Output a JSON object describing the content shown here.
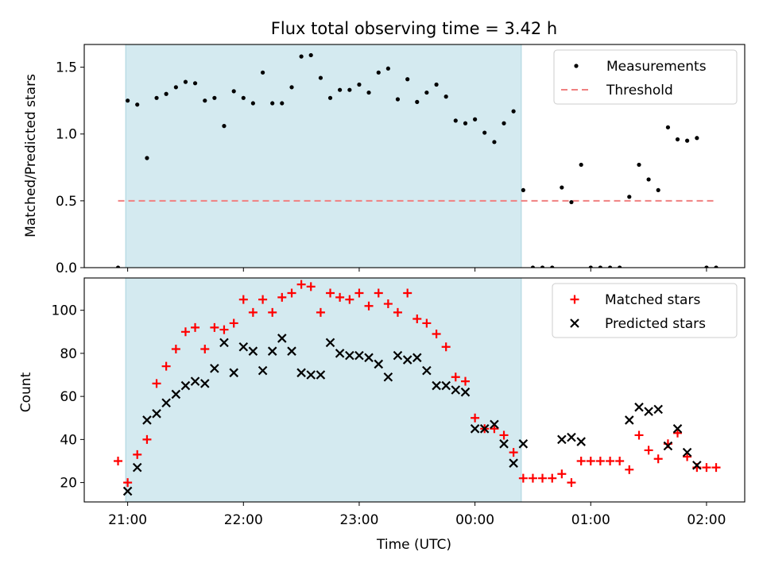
{
  "chart_data": [
    {
      "type": "scatter",
      "title": "Flux total observing time = 3.42 h",
      "xlabel": "",
      "ylabel": "Matched/Predicted stars",
      "xlim": [
        -0.375,
        5.33
      ],
      "ylim": [
        0,
        1.67
      ],
      "yticks": [
        0,
        0.5,
        1.0,
        1.5
      ],
      "ytick_labels": [
        "0.0",
        "0.5",
        "1.0",
        "1.5"
      ],
      "shaded_interval": [
        -0.017,
        3.4
      ],
      "shade_color": "#d4eaf0",
      "threshold": {
        "value": 0.5,
        "x_range": [
          -0.083,
          5.08
        ],
        "color": "#f08080"
      },
      "legend": {
        "position": "top-right",
        "entries": [
          "Measurements",
          "Threshold"
        ]
      },
      "series": [
        {
          "name": "Measurements",
          "color": "#000000",
          "marker": "dot",
          "x": [
            -0.083,
            0.0,
            0.083,
            0.167,
            0.25,
            0.333,
            0.417,
            0.5,
            0.583,
            0.667,
            0.75,
            0.833,
            0.917,
            1.0,
            1.083,
            1.167,
            1.25,
            1.333,
            1.417,
            1.5,
            1.583,
            1.667,
            1.75,
            1.833,
            1.917,
            2.0,
            2.083,
            2.167,
            2.25,
            2.333,
            2.417,
            2.5,
            2.583,
            2.667,
            2.75,
            2.833,
            2.917,
            3.0,
            3.083,
            3.167,
            3.25,
            3.333,
            3.417,
            3.5,
            3.583,
            3.667,
            3.75,
            3.833,
            3.917,
            4.0,
            4.083,
            4.167,
            4.25,
            4.333,
            4.417,
            4.5,
            4.583,
            4.667,
            4.75,
            4.833,
            4.917,
            5.0,
            5.083
          ],
          "y": [
            0.0,
            1.25,
            1.22,
            0.82,
            1.27,
            1.3,
            1.35,
            1.39,
            1.38,
            1.25,
            1.27,
            1.06,
            1.32,
            1.27,
            1.23,
            1.46,
            1.23,
            1.23,
            1.35,
            1.58,
            1.59,
            1.42,
            1.27,
            1.33,
            1.33,
            1.37,
            1.31,
            1.46,
            1.49,
            1.26,
            1.41,
            1.24,
            1.31,
            1.37,
            1.28,
            1.1,
            1.08,
            1.11,
            1.01,
            0.94,
            1.08,
            1.17,
            0.58,
            0.0,
            0.0,
            0.0,
            0.6,
            0.49,
            0.77,
            0.0,
            0.0,
            0.0,
            0.0,
            0.53,
            0.77,
            0.66,
            0.58,
            1.05,
            0.96,
            0.95,
            0.97,
            0.0,
            0.0
          ]
        }
      ]
    },
    {
      "type": "scatter",
      "title": "",
      "xlabel": "Time (UTC)",
      "ylabel": "Count",
      "xlim": [
        -0.375,
        5.33
      ],
      "ylim": [
        11,
        115
      ],
      "yticks": [
        20,
        40,
        60,
        80,
        100
      ],
      "ytick_labels": [
        "20",
        "40",
        "60",
        "80",
        "100"
      ],
      "xticks": [
        0,
        1,
        2,
        3,
        4,
        5
      ],
      "xtick_labels": [
        "21:00",
        "22:00",
        "23:00",
        "00:00",
        "01:00",
        "02:00"
      ],
      "shaded_interval": [
        -0.017,
        3.4
      ],
      "shade_color": "#d4eaf0",
      "legend": {
        "position": "top-right",
        "entries": [
          "Matched stars",
          "Predicted stars"
        ]
      },
      "series": [
        {
          "name": "Matched stars",
          "color": "#ff0000",
          "marker": "plus",
          "x": [
            -0.083,
            0.0,
            0.083,
            0.167,
            0.25,
            0.333,
            0.417,
            0.5,
            0.583,
            0.667,
            0.75,
            0.833,
            0.917,
            1.0,
            1.083,
            1.167,
            1.25,
            1.333,
            1.417,
            1.5,
            1.583,
            1.667,
            1.75,
            1.833,
            1.917,
            2.0,
            2.083,
            2.167,
            2.25,
            2.333,
            2.417,
            2.5,
            2.583,
            2.667,
            2.75,
            2.833,
            2.917,
            3.0,
            3.083,
            3.167,
            3.25,
            3.333,
            3.417,
            3.5,
            3.583,
            3.667,
            3.75,
            3.833,
            3.917,
            4.0,
            4.083,
            4.167,
            4.25,
            4.333,
            4.417,
            4.5,
            4.583,
            4.667,
            4.75,
            4.833,
            4.917,
            5.0,
            5.083
          ],
          "y": [
            30,
            20,
            33,
            40,
            66,
            74,
            82,
            90,
            92,
            82,
            92,
            91,
            94,
            105,
            99,
            105,
            99,
            106,
            108,
            112,
            111,
            99,
            108,
            106,
            105,
            108,
            102,
            108,
            103,
            99,
            108,
            96,
            94,
            89,
            83,
            69,
            67,
            50,
            45,
            45,
            42,
            34,
            22,
            22,
            22,
            22,
            24,
            20,
            30,
            30,
            30,
            30,
            30,
            26,
            42,
            35,
            31,
            38,
            43,
            32,
            27,
            27,
            27
          ]
        },
        {
          "name": "Predicted stars",
          "color": "#000000",
          "marker": "x",
          "x": [
            0.0,
            0.083,
            0.167,
            0.25,
            0.333,
            0.417,
            0.5,
            0.583,
            0.667,
            0.75,
            0.833,
            0.917,
            1.0,
            1.083,
            1.167,
            1.25,
            1.333,
            1.417,
            1.5,
            1.583,
            1.667,
            1.75,
            1.833,
            1.917,
            2.0,
            2.083,
            2.167,
            2.25,
            2.333,
            2.417,
            2.5,
            2.583,
            2.667,
            2.75,
            2.833,
            2.917,
            3.0,
            3.083,
            3.167,
            3.25,
            3.333,
            3.417,
            3.75,
            3.833,
            3.917,
            4.333,
            4.417,
            4.5,
            4.583,
            4.667,
            4.75,
            4.833,
            4.917
          ],
          "y": [
            16,
            27,
            49,
            52,
            57,
            61,
            65,
            67,
            66,
            73,
            85,
            71,
            83,
            81,
            72,
            81,
            87,
            81,
            71,
            70,
            70,
            85,
            80,
            79,
            79,
            78,
            75,
            69,
            79,
            77,
            78,
            72,
            65,
            65,
            63,
            62,
            45,
            45,
            47,
            38,
            29,
            38,
            40,
            41,
            39,
            49,
            55,
            53,
            54,
            37,
            45,
            34,
            28
          ]
        }
      ]
    }
  ]
}
